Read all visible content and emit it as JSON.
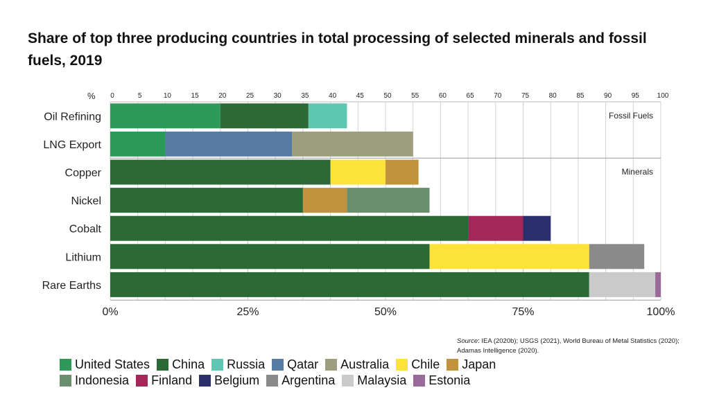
{
  "title": "Share of top three producing countries in total processing of selected minerals and fossil fuels, 2019",
  "source": {
    "prefix": "Source",
    "text": ": IEA (2020b); USGS (2021), World Bureau of Metal Statistics (2020); Adamas Intelligence (2020)."
  },
  "chart_data": {
    "type": "bar",
    "orientation": "horizontal",
    "stacked": true,
    "unit_label": "%",
    "xlim": [
      0,
      100
    ],
    "top_ticks": [
      "0",
      "5",
      "10",
      "15",
      "20",
      "25",
      "30",
      "35",
      "40",
      "45",
      "50",
      "55",
      "60",
      "65",
      "70",
      "75",
      "80",
      "85",
      "90",
      "95",
      "100"
    ],
    "bottom_ticks": [
      {
        "value": 0,
        "label": "0%"
      },
      {
        "value": 25,
        "label": "25%"
      },
      {
        "value": 50,
        "label": "50%"
      },
      {
        "value": 75,
        "label": "75%"
      },
      {
        "value": 100,
        "label": "100%"
      }
    ],
    "grid": true,
    "groups": [
      {
        "label": "Fossil Fuels",
        "categories": [
          "Oil Refining",
          "LNG Export"
        ]
      },
      {
        "label": "Minerals",
        "categories": [
          "Copper",
          "Nickel",
          "Cobalt",
          "Lithium",
          "Rare Earths"
        ]
      }
    ],
    "categories": [
      "Oil Refining",
      "LNG Export",
      "Copper",
      "Nickel",
      "Cobalt",
      "Lithium",
      "Rare Earths"
    ],
    "bars": [
      {
        "category": "Oil Refining",
        "segments": [
          {
            "country": "United States",
            "value": 20
          },
          {
            "country": "China",
            "value": 16
          },
          {
            "country": "Russia",
            "value": 7
          }
        ]
      },
      {
        "category": "LNG Export",
        "segments": [
          {
            "country": "United States",
            "value": 10
          },
          {
            "country": "Qatar",
            "value": 23
          },
          {
            "country": "Australia",
            "value": 22
          }
        ]
      },
      {
        "category": "Copper",
        "segments": [
          {
            "country": "China",
            "value": 40
          },
          {
            "country": "Chile",
            "value": 10
          },
          {
            "country": "Japan",
            "value": 6
          }
        ]
      },
      {
        "category": "Nickel",
        "segments": [
          {
            "country": "China",
            "value": 35
          },
          {
            "country": "Japan",
            "value": 8
          },
          {
            "country": "Indonesia",
            "value": 15
          }
        ]
      },
      {
        "category": "Cobalt",
        "segments": [
          {
            "country": "China",
            "value": 65
          },
          {
            "country": "Finland",
            "value": 10
          },
          {
            "country": "Belgium",
            "value": 5
          }
        ]
      },
      {
        "category": "Lithium",
        "segments": [
          {
            "country": "China",
            "value": 58
          },
          {
            "country": "Chile",
            "value": 29
          },
          {
            "country": "Argentina",
            "value": 10
          }
        ]
      },
      {
        "category": "Rare Earths",
        "segments": [
          {
            "country": "China",
            "value": 87
          },
          {
            "country": "Malaysia",
            "value": 12
          },
          {
            "country": "Estonia",
            "value": 1
          }
        ]
      }
    ],
    "legend": [
      {
        "name": "United States",
        "color": "#2e9a5a"
      },
      {
        "name": "China",
        "color": "#2b6a36"
      },
      {
        "name": "Russia",
        "color": "#5fc7b1"
      },
      {
        "name": "Qatar",
        "color": "#587ba3"
      },
      {
        "name": "Australia",
        "color": "#9c9e7f"
      },
      {
        "name": "Chile",
        "color": "#fde23a"
      },
      {
        "name": "Japan",
        "color": "#c2933f"
      },
      {
        "name": "Indonesia",
        "color": "#6a8f6e"
      },
      {
        "name": "Finland",
        "color": "#a3285a"
      },
      {
        "name": "Belgium",
        "color": "#2b2f6b"
      },
      {
        "name": "Argentina",
        "color": "#8a8a8a"
      },
      {
        "name": "Malaysia",
        "color": "#cacaca"
      },
      {
        "name": "Estonia",
        "color": "#9a6a9a"
      }
    ],
    "legend_rows": [
      [
        "United States",
        "China",
        "Russia",
        "Qatar",
        "Australia",
        "Chile",
        "Japan"
      ],
      [
        "Indonesia",
        "Finland",
        "Belgium",
        "Argentina",
        "Malaysia",
        "Estonia"
      ]
    ]
  }
}
